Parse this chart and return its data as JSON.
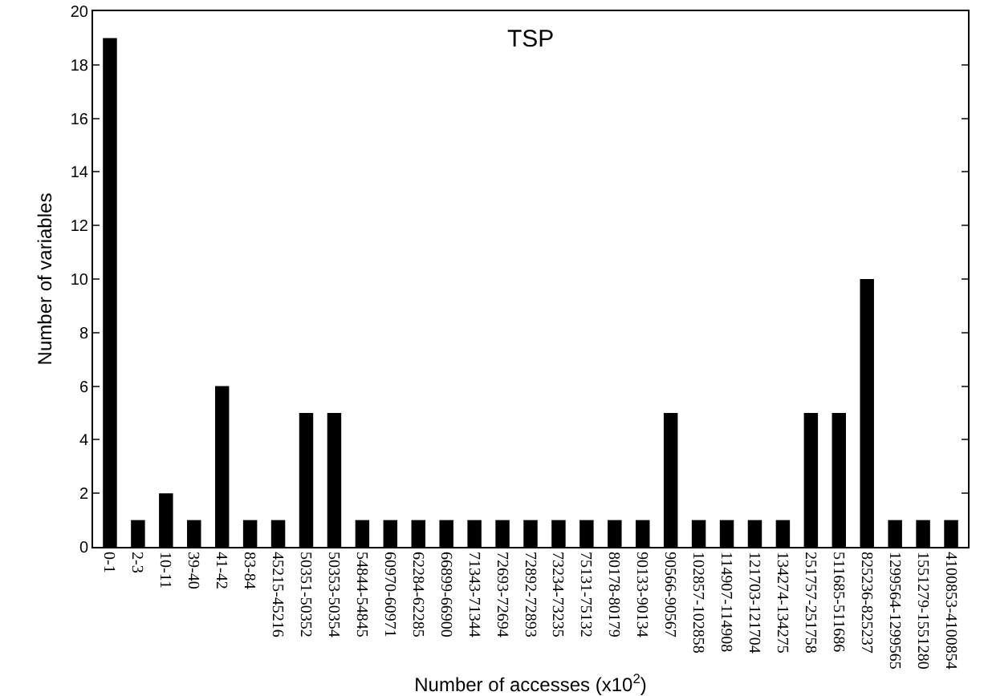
{
  "chart_data": {
    "type": "bar",
    "title": "TSP",
    "xlabel": "Number of accesses (x10$^{2}$)",
    "ylabel": "Number of variables",
    "categories": [
      "0-1",
      "2-3",
      "10-11",
      "39-40",
      "41-42",
      "83-84",
      "45215-45216",
      "50351-50352",
      "50353-50354",
      "54844-54845",
      "60970-60971",
      "62284-62285",
      "66899-66900",
      "71343-71344",
      "72693-72694",
      "72892-72893",
      "73234-73235",
      "75131-75132",
      "80178-80179",
      "90133-90134",
      "90566-90567",
      "102857-102858",
      "114907-114908",
      "121703-121704",
      "134274-134275",
      "251757-251758",
      "511685-511686",
      "825236-825237",
      "1299564-1299565",
      "1551279-1551280",
      "4100853-4100854"
    ],
    "values": [
      19,
      1,
      2,
      1,
      6,
      1,
      1,
      5,
      5,
      1,
      1,
      1,
      1,
      1,
      1,
      1,
      1,
      1,
      1,
      1,
      5,
      1,
      1,
      1,
      1,
      5,
      5,
      10,
      1,
      1,
      1
    ],
    "color": "#000000",
    "ylim": [
      0,
      20
    ],
    "yticks": [
      0,
      2,
      4,
      6,
      8,
      10,
      12,
      14,
      16,
      18,
      20
    ]
  }
}
